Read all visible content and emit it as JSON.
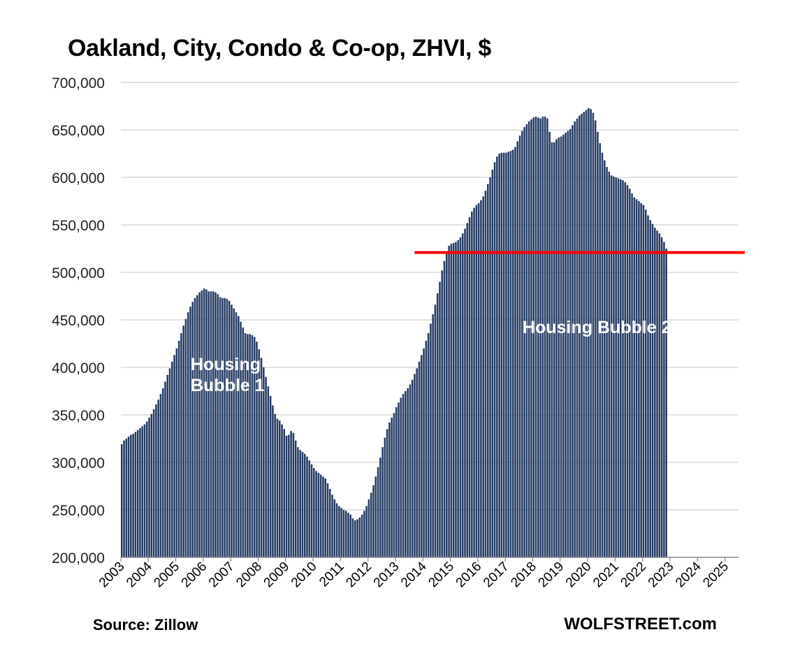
{
  "chart_data": {
    "type": "bar",
    "title": "Oakland, City, Condo & Co-op, ZHVI, $",
    "ylim": [
      200000,
      700000
    ],
    "y_ticks": [
      "200,000",
      "250,000",
      "300,000",
      "350,000",
      "400,000",
      "450,000",
      "500,000",
      "550,000",
      "600,000",
      "650,000",
      "700,000"
    ],
    "x_ticks": [
      "2003",
      "2004",
      "2005",
      "2006",
      "2007",
      "2008",
      "2009",
      "2010",
      "2011",
      "2012",
      "2013",
      "2014",
      "2015",
      "2016",
      "2017",
      "2018",
      "2019",
      "2020",
      "2021",
      "2022",
      "2023",
      "2024",
      "2025"
    ],
    "x_start": "2003-01",
    "x_end": "2025-06",
    "grid": true,
    "bar_color": "#243a63",
    "reference_line": {
      "value": 521000,
      "from": "2014-01",
      "color": "#ff0000"
    },
    "annotations": [
      {
        "lines": [
          "Housing",
          "Bubble 1"
        ]
      },
      {
        "lines": [
          "Housing Bubble 2"
        ]
      }
    ],
    "series": [
      {
        "values": [
          319000,
          323000,
          325000,
          327000,
          329000,
          330000,
          332000,
          334000,
          336000,
          338000,
          340000,
          343000,
          347000,
          351000,
          356000,
          361000,
          366000,
          372000,
          378000,
          385000,
          392000,
          399000,
          406000,
          413000,
          420000,
          428000,
          436000,
          444000,
          451000,
          458000,
          464000,
          469000,
          473000,
          476000,
          479000,
          481000,
          483000,
          482000,
          480000,
          480000,
          480000,
          479000,
          477000,
          474000,
          473000,
          473000,
          472000,
          470000,
          466000,
          462000,
          458000,
          454000,
          448000,
          442000,
          436000,
          435000,
          435000,
          434000,
          432000,
          427000,
          419000,
          410000,
          400000,
          390000,
          380000,
          370000,
          360000,
          351000,
          346000,
          344000,
          340000,
          335000,
          328000,
          329000,
          333000,
          331000,
          323000,
          316000,
          313000,
          311000,
          309000,
          306000,
          302000,
          298000,
          294000,
          291000,
          289000,
          287000,
          285000,
          283000,
          278000,
          272000,
          266000,
          261000,
          257000,
          254000,
          252000,
          250000,
          249000,
          247000,
          245000,
          241000,
          239000,
          240000,
          242000,
          245000,
          249000,
          254000,
          261000,
          268000,
          276000,
          285000,
          295000,
          305000,
          316000,
          326000,
          335000,
          342000,
          347000,
          352000,
          358000,
          363000,
          368000,
          372000,
          375000,
          378000,
          382000,
          387000,
          393000,
          399000,
          406000,
          413000,
          420000,
          428000,
          436000,
          446000,
          456000,
          466000,
          478000,
          490000,
          502000,
          512000,
          521000,
          528000,
          530000,
          531000,
          532000,
          534000,
          537000,
          541000,
          546000,
          552000,
          558000,
          564000,
          568000,
          571000,
          573000,
          576000,
          580000,
          586000,
          593000,
          600000,
          608000,
          616000,
          622000,
          625000,
          626000,
          626000,
          626000,
          627000,
          628000,
          629000,
          632000,
          638000,
          644000,
          649000,
          653000,
          656000,
          659000,
          661000,
          663000,
          664000,
          663000,
          662000,
          664000,
          664000,
          662000,
          648000,
          637000,
          637000,
          640000,
          642000,
          643000,
          645000,
          647000,
          649000,
          651000,
          655000,
          659000,
          662000,
          665000,
          667000,
          669000,
          671000,
          673000,
          672000,
          668000,
          660000,
          648000,
          636000,
          626000,
          618000,
          611000,
          606000,
          602000,
          601000,
          600000,
          599000,
          598000,
          597000,
          595000,
          592000,
          588000,
          583000,
          579000,
          577000,
          575000,
          573000,
          571000,
          566000,
          560000,
          555000,
          551000,
          547000,
          544000,
          541000,
          537000,
          532000,
          525000
        ]
      }
    ]
  },
  "footer": {
    "source": "Source: Zillow",
    "brand": "WOLFSTREET.com"
  }
}
